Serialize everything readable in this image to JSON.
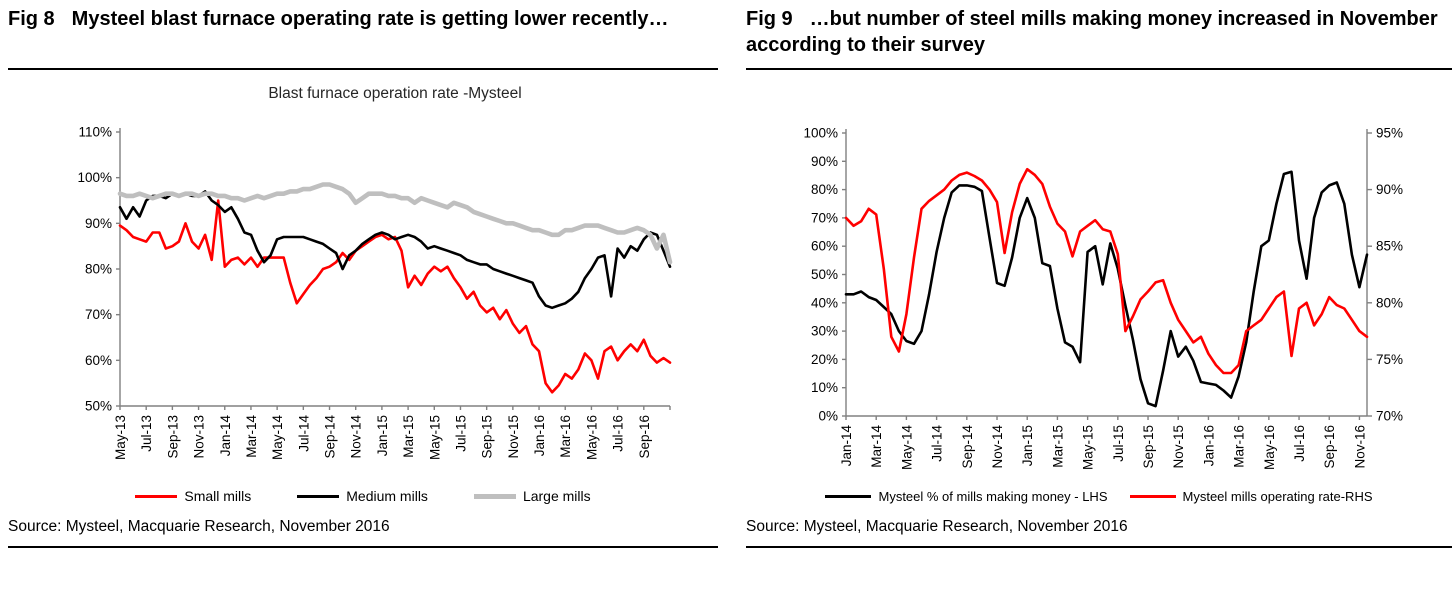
{
  "fig8": {
    "fig_label": "Fig 8",
    "title": "Mysteel blast furnace operating rate is getting lower recently…",
    "source": "Source: Mysteel, Macquarie Research, November 2016"
  },
  "fig9": {
    "fig_label": "Fig 9",
    "title": "…but number of steel mills making money increased in November according to their survey",
    "source": "Source: Mysteel, Macquarie Research, November 2016"
  },
  "chart_data": [
    {
      "id": "fig8",
      "type": "line",
      "title": "Blast furnace operation rate -Mysteel",
      "grid": false,
      "legend_position": "bottom",
      "x_start": "May-13",
      "x_end": "Nov-16",
      "x_frequency": "semi-monthly",
      "x_tick_every": 4,
      "x_tick_labels": [
        "May-13",
        "Jul-13",
        "Sep-13",
        "Nov-13",
        "Jan-14",
        "Mar-14",
        "May-14",
        "Jul-14",
        "Sep-14",
        "Nov-14",
        "Jan-15",
        "Mar-15",
        "May-15",
        "Jul-15",
        "Sep-15",
        "Nov-15",
        "Jan-16",
        "Mar-16",
        "May-16",
        "Jul-16",
        "Sep-16"
      ],
      "left_axis": {
        "min": 50,
        "max": 110,
        "unit": "%",
        "tick_labels": [
          "110%",
          "100%",
          "90%",
          "80%",
          "70%",
          "60%",
          "50%"
        ]
      },
      "series": [
        {
          "name": "Small mills",
          "color": "#ff0000",
          "width": 2.6,
          "axis": "left",
          "values": [
            89.5,
            88.5,
            87,
            86.5,
            86,
            88,
            88,
            84.5,
            85,
            86,
            90,
            86,
            84.5,
            87.5,
            82,
            95,
            80.5,
            82,
            82.5,
            81,
            82.5,
            80.5,
            82.5,
            82.5,
            82.5,
            82.5,
            77,
            72.5,
            74.5,
            76.5,
            78,
            80,
            80.5,
            81.5,
            83.5,
            82,
            84,
            85,
            86,
            87,
            87.5,
            86.5,
            87,
            84,
            76,
            78.5,
            76.5,
            79,
            80.5,
            79.5,
            80.5,
            78,
            76,
            73.5,
            75,
            72,
            70.5,
            71.5,
            69,
            71,
            68,
            66,
            67.5,
            63.5,
            62,
            55,
            53,
            54.5,
            57,
            56,
            58,
            61.5,
            60,
            56,
            62,
            63,
            60,
            62,
            63.5,
            62,
            64.5,
            61,
            59.5,
            60.5,
            59.5
          ]
        },
        {
          "name": "Medium mills",
          "color": "#000000",
          "width": 2.6,
          "axis": "left",
          "values": [
            93.5,
            91,
            93.5,
            91.5,
            95,
            96,
            96,
            95.5,
            96.5,
            96,
            96.5,
            96,
            96,
            97,
            95,
            94,
            92.5,
            93.5,
            91,
            88,
            87.5,
            84,
            81.5,
            83,
            86.5,
            87,
            87,
            87,
            87,
            86.5,
            86,
            85.5,
            84.5,
            83.5,
            80,
            83,
            84,
            85.5,
            86.5,
            87.5,
            88,
            87.5,
            86.5,
            87,
            87.5,
            87,
            86,
            84.5,
            85,
            84.5,
            84,
            83.5,
            83,
            82,
            81.5,
            81,
            81,
            80,
            79.5,
            79,
            78.5,
            78,
            77.5,
            77,
            74,
            72,
            71.5,
            72,
            72.5,
            73.5,
            75,
            78,
            80,
            82.5,
            83,
            74,
            84.5,
            82.5,
            85,
            84,
            86.5,
            88,
            87.5,
            84,
            80.5
          ]
        },
        {
          "name": "Large mills",
          "color": "#bfbfbf",
          "width": 4.6,
          "axis": "left",
          "values": [
            96.5,
            96,
            96,
            96.5,
            96,
            95.5,
            96,
            96.5,
            96.5,
            96,
            96.5,
            96.5,
            96,
            96.5,
            96.5,
            96,
            96,
            95.5,
            95.5,
            95,
            95.5,
            96,
            95.5,
            96,
            96.5,
            96.5,
            97,
            97,
            97.5,
            97.5,
            98,
            98.5,
            98.5,
            98,
            97.5,
            96.5,
            94.5,
            95.5,
            96.5,
            96.5,
            96.5,
            96,
            96,
            95.5,
            95.5,
            94.5,
            95.5,
            95,
            94.5,
            94,
            93.5,
            94.5,
            94,
            93.5,
            92.5,
            92,
            91.5,
            91,
            90.5,
            90,
            90,
            89.5,
            89,
            88.5,
            88.5,
            88,
            87.5,
            87.5,
            88.5,
            88.5,
            89,
            89.5,
            89.5,
            89.5,
            89,
            88.5,
            88,
            88,
            88.5,
            89,
            88.5,
            87.5,
            84.5,
            87.5,
            81.5
          ]
        }
      ]
    },
    {
      "id": "fig9",
      "type": "line",
      "title": "",
      "grid": false,
      "legend_position": "bottom",
      "x_start": "Jan-14",
      "x_end": "Nov-16",
      "x_frequency": "semi-monthly",
      "x_tick_every": 4,
      "x_tick_labels": [
        "Jan-14",
        "Mar-14",
        "May-14",
        "Jul-14",
        "Sep-14",
        "Nov-14",
        "Jan-15",
        "Mar-15",
        "May-15",
        "Jul-15",
        "Sep-15",
        "Nov-15",
        "Jan-16",
        "Mar-16",
        "May-16",
        "Jul-16",
        "Sep-16",
        "Nov-16"
      ],
      "left_axis": {
        "min": 0,
        "max": 100,
        "unit": "%",
        "tick_labels": [
          "100%",
          "90%",
          "80%",
          "70%",
          "60%",
          "50%",
          "40%",
          "30%",
          "20%",
          "10%",
          "0%"
        ]
      },
      "right_axis": {
        "min": 70,
        "max": 95,
        "unit": "%",
        "tick_labels": [
          "95%",
          "90%",
          "85%",
          "80%",
          "75%",
          "70%"
        ]
      },
      "series": [
        {
          "name": "Mysteel % of mills making money - LHS",
          "color": "#000000",
          "width": 2.6,
          "axis": "left",
          "values": [
            43,
            43,
            44,
            42,
            41,
            38.5,
            36,
            30,
            26.5,
            25.5,
            30,
            43,
            58,
            70,
            79,
            81.5,
            81.5,
            81,
            79.5,
            63,
            47,
            46,
            56,
            70,
            77,
            70,
            54,
            53,
            38,
            26,
            24.5,
            19,
            58,
            60,
            46.5,
            61,
            52,
            39,
            27,
            13,
            4.5,
            3.5,
            16,
            30,
            21,
            24.5,
            19.5,
            12,
            11.5,
            11,
            9,
            6.5,
            14,
            26,
            44,
            60,
            62,
            75,
            85.5,
            86.3,
            62,
            48.5,
            70,
            79,
            81.5,
            82.5,
            75,
            57,
            45.5,
            57
          ]
        },
        {
          "name": "Mysteel mills operating rate-RHS",
          "color": "#ff0000",
          "width": 2.6,
          "axis": "right",
          "values": [
            87.5,
            86.8,
            87.2,
            88.3,
            87.8,
            83,
            77,
            75.7,
            79,
            84,
            88.3,
            89,
            89.5,
            90,
            90.8,
            91.3,
            91.5,
            91.2,
            90.8,
            90,
            88.9,
            84.4,
            88,
            90.5,
            91.8,
            91.3,
            90.5,
            88.5,
            87,
            86.3,
            84.1,
            86.3,
            86.8,
            87.3,
            86.5,
            86.3,
            84.3,
            77.5,
            78.8,
            80.3,
            81,
            81.8,
            82,
            80,
            78.5,
            77.5,
            76.5,
            77,
            75.5,
            74.5,
            73.8,
            73.8,
            74.5,
            77.5,
            78,
            78.5,
            79.5,
            80.5,
            81,
            75.3,
            79.5,
            80,
            78,
            79,
            80.5,
            79.8,
            79.5,
            78.5,
            77.5,
            77
          ]
        }
      ]
    }
  ]
}
